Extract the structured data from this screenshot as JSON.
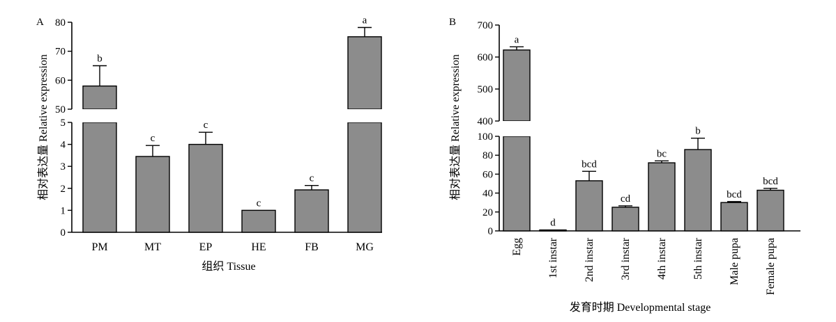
{
  "chart_data": [
    {
      "panel": "A",
      "type": "bar",
      "xlabel": "组织 Tissue",
      "ylabel": "相对表达量 Relative expression",
      "categories": [
        "PM",
        "MT",
        "EP",
        "HE",
        "FB",
        "MG"
      ],
      "values": [
        58,
        3.45,
        4.0,
        1.0,
        1.93,
        75
      ],
      "errors": [
        7,
        0.5,
        0.55,
        0,
        0.2,
        3.2
      ],
      "labels": [
        "b",
        "c",
        "c",
        "c",
        "c",
        "a"
      ],
      "bar_color": "#8c8c8c",
      "axis_break": true,
      "ylim_lower": [
        0,
        5
      ],
      "ylim_upper": [
        50,
        80
      ],
      "yticks_lower": [
        0,
        1,
        2,
        3,
        4,
        5
      ],
      "yticks_upper": [
        50,
        60,
        70,
        80
      ]
    },
    {
      "panel": "B",
      "type": "bar",
      "xlabel": "发育时期 Developmental stage",
      "ylabel": "相对表达量 Relative expression",
      "categories": [
        "Egg",
        "1st instar",
        "2nd instar",
        "3rd instar",
        "4th instar",
        "5th instar",
        "Male pupa",
        "Female pupa"
      ],
      "values": [
        622,
        1,
        53,
        25,
        72,
        86,
        30,
        43
      ],
      "errors": [
        10,
        0,
        10,
        1.5,
        2,
        12,
        1,
        2
      ],
      "labels": [
        "a",
        "d",
        "bcd",
        "cd",
        "bc",
        "b",
        "bcd",
        "bcd"
      ],
      "bar_color": "#8c8c8c",
      "axis_break": true,
      "ylim_lower": [
        0,
        100
      ],
      "ylim_upper": [
        400,
        700
      ],
      "yticks_lower": [
        0,
        20,
        40,
        60,
        80,
        100
      ],
      "yticks_upper": [
        400,
        500,
        600,
        700
      ]
    }
  ]
}
